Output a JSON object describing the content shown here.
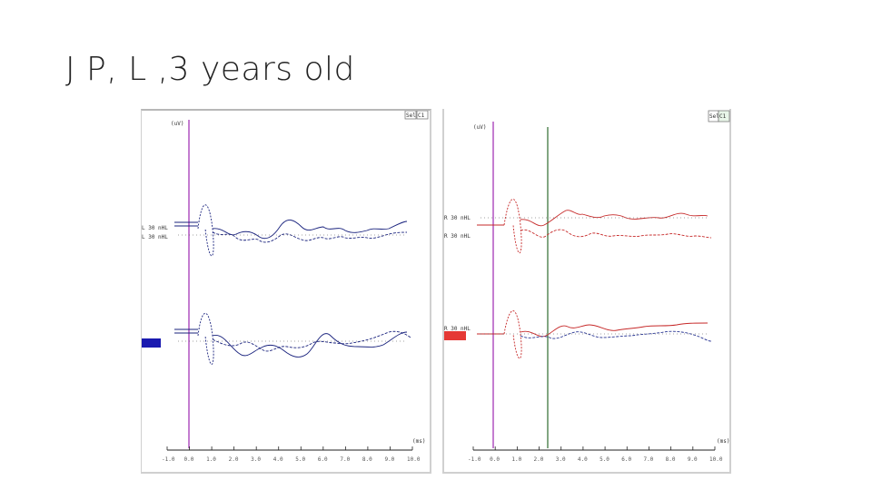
{
  "slide": {
    "title": "J P, L ,3 years old"
  },
  "left_panel": {
    "top_unit_label": "(uV)",
    "x_unit_label": "(ms)",
    "toolbar_buttons": [
      "Sel",
      "C1"
    ],
    "trace_color": "#1a237e",
    "marker_color": "#9c27b0",
    "channel_labels": [
      "L 30 nHL",
      "L 30 nHL"
    ],
    "legend_swatch_color": "#1a1ab0",
    "x_ticks": [
      "-1.0",
      "0.0",
      "1.0",
      "2.0",
      "3.0",
      "4.0",
      "5.0",
      "6.0",
      "7.0",
      "8.0",
      "9.0",
      "10.0"
    ]
  },
  "right_panel": {
    "top_unit_label": "(uV)",
    "x_unit_label": "(ms)",
    "toolbar_buttons": [
      "Sel",
      "C1"
    ],
    "trace_color": "#c62828",
    "second_trace_color": "#283593",
    "marker_color": "#9c27b0",
    "cursor_color": "#2e6b2e",
    "channel_labels": [
      "R 30 nHL",
      "R 30 nHL",
      "R 30 nHL"
    ],
    "legend_swatch_color": "#e53935",
    "x_ticks": [
      "-1.0",
      "0.0",
      "1.0",
      "2.0",
      "3.0",
      "4.0",
      "5.0",
      "6.0",
      "7.0",
      "8.0",
      "9.0",
      "10.0"
    ]
  }
}
